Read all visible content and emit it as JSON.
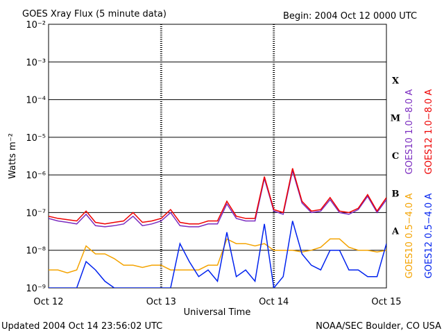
{
  "chart_data": {
    "type": "line",
    "title": "GOES Xray Flux (5 minute data)",
    "subtitle": "Begin:  2004 Oct 12 0000 UTC",
    "x_label": "Universal Time",
    "y_label": "Watts m⁻²",
    "footer_left": "Updated 2004 Oct 14 23:56:02 UTC",
    "footer_right": "NOAA/SEC Boulder, CO USA",
    "log_scale": true,
    "grid": true,
    "class_labels": [
      "A",
      "B",
      "C",
      "M",
      "X"
    ],
    "xlim": [
      0,
      72
    ],
    "xticks": [
      {
        "value": 0,
        "label": "Oct 12"
      },
      {
        "value": 24,
        "label": "Oct 13"
      },
      {
        "value": 48,
        "label": "Oct 14"
      },
      {
        "value": 72,
        "label": "Oct 15"
      }
    ],
    "ylim": [
      1e-09,
      0.01
    ],
    "yticks": [
      {
        "value": 1e-09,
        "label": "10⁻⁹"
      },
      {
        "value": 1e-08,
        "label": "10⁻⁸"
      },
      {
        "value": 1e-07,
        "label": "10⁻⁷"
      },
      {
        "value": 1e-06,
        "label": "10⁻⁶"
      },
      {
        "value": 1e-05,
        "label": "10⁻⁵"
      },
      {
        "value": 0.0001,
        "label": "10⁻⁴"
      },
      {
        "value": 0.001,
        "label": "10⁻³"
      },
      {
        "value": 0.01,
        "label": "10⁻²"
      }
    ],
    "x": [
      0,
      2,
      4,
      6,
      8,
      10,
      12,
      14,
      16,
      18,
      20,
      22,
      24,
      26,
      28,
      30,
      32,
      34,
      36,
      38,
      40,
      42,
      44,
      46,
      48,
      50,
      52,
      54,
      56,
      58,
      60,
      62,
      64,
      66,
      68,
      70,
      72
    ],
    "series": [
      {
        "name": "GOES10 1.0−8.0 A",
        "color": "#7a2bbf",
        "values": [
          7e-08,
          6e-08,
          5.5e-08,
          5e-08,
          9e-08,
          4.5e-08,
          4.2e-08,
          4.5e-08,
          5e-08,
          8e-08,
          4.5e-08,
          5e-08,
          6e-08,
          1e-07,
          4.5e-08,
          4.2e-08,
          4.2e-08,
          5e-08,
          5e-08,
          1.7e-07,
          7e-08,
          6e-08,
          6e-08,
          8e-07,
          1.1e-07,
          9e-08,
          1.3e-06,
          1.8e-07,
          1e-07,
          1.1e-07,
          2.2e-07,
          1e-07,
          9e-08,
          1.2e-07,
          2.7e-07,
          1e-07,
          2.2e-07
        ]
      },
      {
        "name": "GOES12 1.0−8.0 A",
        "color": "#ee0000",
        "values": [
          8e-08,
          7e-08,
          6.5e-08,
          6e-08,
          1.1e-07,
          5.5e-08,
          5e-08,
          5.5e-08,
          6e-08,
          1e-07,
          5.5e-08,
          6e-08,
          7e-08,
          1.2e-07,
          5.5e-08,
          5e-08,
          5e-08,
          6e-08,
          6e-08,
          2e-07,
          8e-08,
          7e-08,
          7e-08,
          9e-07,
          1.2e-07,
          1e-07,
          1.5e-06,
          2e-07,
          1.1e-07,
          1.2e-07,
          2.5e-07,
          1.1e-07,
          1e-07,
          1.3e-07,
          3e-07,
          1.1e-07,
          2.5e-07
        ]
      },
      {
        "name": "GOES10 0.5−4.0 A",
        "color": "#f4a300",
        "values": [
          3e-09,
          3e-09,
          2.5e-09,
          3e-09,
          1.3e-08,
          8e-09,
          8e-09,
          6e-09,
          4e-09,
          4e-09,
          3.5e-09,
          4e-09,
          4e-09,
          3e-09,
          3e-09,
          3e-09,
          3e-09,
          4e-09,
          4e-09,
          2e-08,
          1.5e-08,
          1.5e-08,
          1.3e-08,
          1.5e-08,
          1e-08,
          1e-08,
          1e-08,
          9e-09,
          1e-08,
          1.2e-08,
          2e-08,
          2e-08,
          1.2e-08,
          1e-08,
          1e-08,
          9e-09,
          1e-08
        ]
      },
      {
        "name": "GOES12 0.5−4.0 A",
        "color": "#0022ee",
        "values": [
          1e-09,
          1e-09,
          1e-09,
          1e-09,
          5e-09,
          3e-09,
          1.5e-09,
          1e-09,
          1e-09,
          1e-09,
          1e-09,
          1e-09,
          1e-09,
          1e-09,
          1.5e-08,
          5e-09,
          2e-09,
          3e-09,
          1.5e-09,
          3e-08,
          2e-09,
          3e-09,
          1.5e-09,
          5e-08,
          1e-09,
          2e-09,
          6e-08,
          8e-09,
          4e-09,
          3e-09,
          1e-08,
          1e-08,
          3e-09,
          3e-09,
          2e-09,
          2e-09,
          1.5e-08
        ]
      }
    ]
  }
}
